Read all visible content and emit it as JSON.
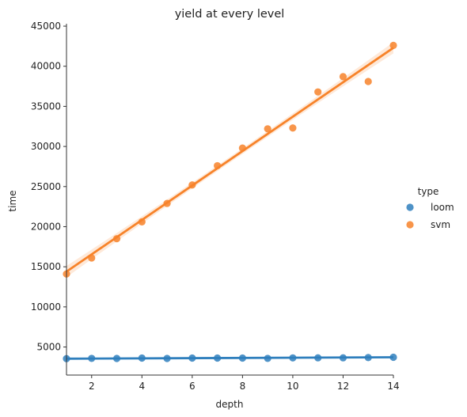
{
  "chart_data": {
    "type": "scatter",
    "title": "yield at every level",
    "xlabel": "depth",
    "ylabel": "time",
    "xlim": [
      1,
      14
    ],
    "ylim": [
      1500,
      45300
    ],
    "xticks": [
      2,
      4,
      6,
      8,
      10,
      12,
      14
    ],
    "yticks": [
      5000,
      10000,
      15000,
      20000,
      25000,
      30000,
      35000,
      40000,
      45000
    ],
    "legend": {
      "title": "type",
      "placement": "right"
    },
    "series": [
      {
        "name": "loom",
        "color": "#2f7fbd",
        "x": [
          1,
          2,
          3,
          4,
          5,
          6,
          7,
          8,
          9,
          10,
          11,
          12,
          13,
          14
        ],
        "y": [
          3550,
          3580,
          3570,
          3620,
          3570,
          3620,
          3620,
          3620,
          3580,
          3640,
          3650,
          3650,
          3680,
          3720
        ],
        "fit": {
          "start": 3540,
          "end": 3720
        }
      },
      {
        "name": "svm",
        "color": "#f7832a",
        "x": [
          1,
          2,
          3,
          4,
          5,
          6,
          7,
          8,
          9,
          10,
          11,
          12,
          13,
          14
        ],
        "y": [
          14100,
          16100,
          18500,
          20600,
          22900,
          25200,
          27600,
          29800,
          32200,
          32300,
          36800,
          38700,
          38100,
          42600
        ],
        "fit": {
          "start": 14400,
          "end": 42300
        }
      }
    ]
  }
}
